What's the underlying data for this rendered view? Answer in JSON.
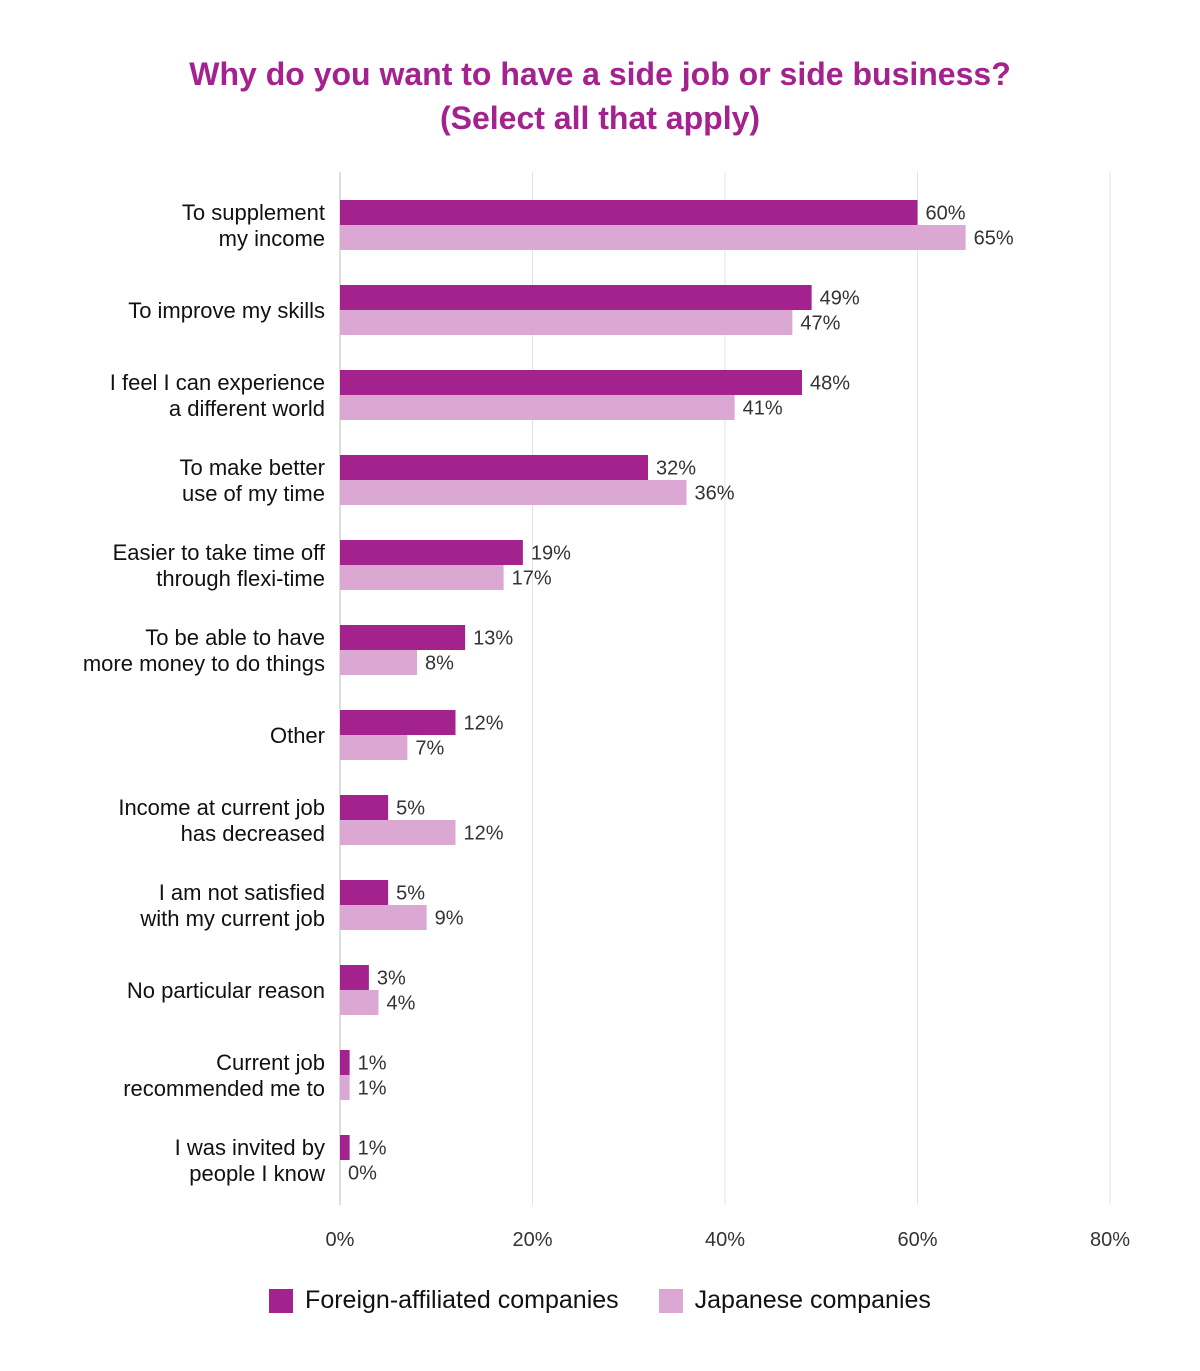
{
  "chart_data": {
    "type": "bar",
    "orientation": "horizontal",
    "title_line1": "Why do you want to have a side job or side business?",
    "title_line2": "(Select all that apply)",
    "categories": [
      [
        "To supplement",
        "my income"
      ],
      [
        "To improve my skills"
      ],
      [
        "I feel I can experience",
        "a different world"
      ],
      [
        "To make better",
        "use of my time"
      ],
      [
        "Easier to take time off",
        "through flexi-time"
      ],
      [
        "To be able to have",
        "more money to do things"
      ],
      [
        "Other"
      ],
      [
        "Income at current job",
        "has decreased"
      ],
      [
        "I am not satisfied",
        "with my current job"
      ],
      [
        "No particular reason"
      ],
      [
        "Current job",
        "recommended me to"
      ],
      [
        "I was invited by",
        "people I know"
      ]
    ],
    "series": [
      {
        "name": "Foreign-affiliated companies",
        "color": "#a3228d",
        "values": [
          60,
          49,
          48,
          32,
          19,
          13,
          12,
          5,
          5,
          3,
          1,
          1
        ]
      },
      {
        "name": "Japanese companies",
        "color": "#dba8d4",
        "values": [
          65,
          47,
          41,
          36,
          17,
          8,
          7,
          12,
          9,
          4,
          1,
          0
        ]
      }
    ],
    "xlim": [
      0,
      80
    ],
    "xticks": [
      0,
      20,
      40,
      60,
      80
    ],
    "tick_suffix": "%",
    "value_suffix": "%",
    "grid": true,
    "legend_position": "bottom"
  }
}
